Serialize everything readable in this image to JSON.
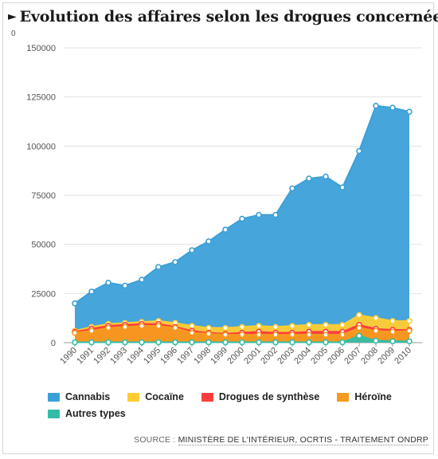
{
  "title": "Evolution des affaires selon les drogues concernées",
  "title_marker": "►",
  "corner_label": "0",
  "source": {
    "prefix": "SOURCE :",
    "text": "MINISTÈRE DE L'INTÉRIEUR, OCRTIS - TRAITEMENT ONDRP"
  },
  "chart_data": {
    "type": "area",
    "stacked": false,
    "x": [
      "1990",
      "1991",
      "1992",
      "1993",
      "1994",
      "1995",
      "1996",
      "1997",
      "1998",
      "1999",
      "2000",
      "2001",
      "2002",
      "2003",
      "2004",
      "2005",
      "2006",
      "2007",
      "2008",
      "2009",
      "2010"
    ],
    "ylim": [
      0,
      150000
    ],
    "yticks": [
      0,
      25000,
      50000,
      75000,
      100000,
      125000,
      150000
    ],
    "grid": true,
    "legend_position": "bottom",
    "series": [
      {
        "name": "Cannabis",
        "color": "#3ca0d8",
        "values": [
          20000,
          26000,
          30500,
          29000,
          32000,
          38500,
          41000,
          47000,
          51500,
          57500,
          63000,
          65000,
          65000,
          78500,
          83500,
          84500,
          79000,
          97500,
          120500,
          119500,
          117500
        ]
      },
      {
        "name": "Cocaïne",
        "color": "#ffcc33",
        "values": [
          6000,
          8000,
          9500,
          10000,
          10500,
          11000,
          10000,
          8500,
          7500,
          7500,
          8000,
          8500,
          8000,
          8500,
          9000,
          9000,
          9000,
          14000,
          12500,
          11000,
          11000
        ]
      },
      {
        "name": "Drogues de synthèse",
        "color": "#ff3d3d",
        "values": [
          5500,
          7000,
          8500,
          9000,
          9500,
          9500,
          8000,
          6000,
          5000,
          4500,
          5000,
          5500,
          5000,
          5000,
          5500,
          5500,
          5500,
          9000,
          7000,
          6500,
          6500
        ]
      },
      {
        "name": "Héroïne",
        "color": "#f59b1f",
        "values": [
          5000,
          6000,
          7500,
          8000,
          8500,
          8500,
          7500,
          5000,
          4500,
          4000,
          4000,
          4000,
          4000,
          4000,
          4000,
          4000,
          4000,
          7500,
          6000,
          5500,
          6000
        ]
      },
      {
        "name": "Autres types",
        "color": "#33bda8",
        "values": [
          200,
          200,
          200,
          200,
          200,
          200,
          200,
          200,
          200,
          200,
          200,
          200,
          200,
          200,
          200,
          200,
          200,
          3500,
          1000,
          700,
          700
        ]
      }
    ]
  }
}
